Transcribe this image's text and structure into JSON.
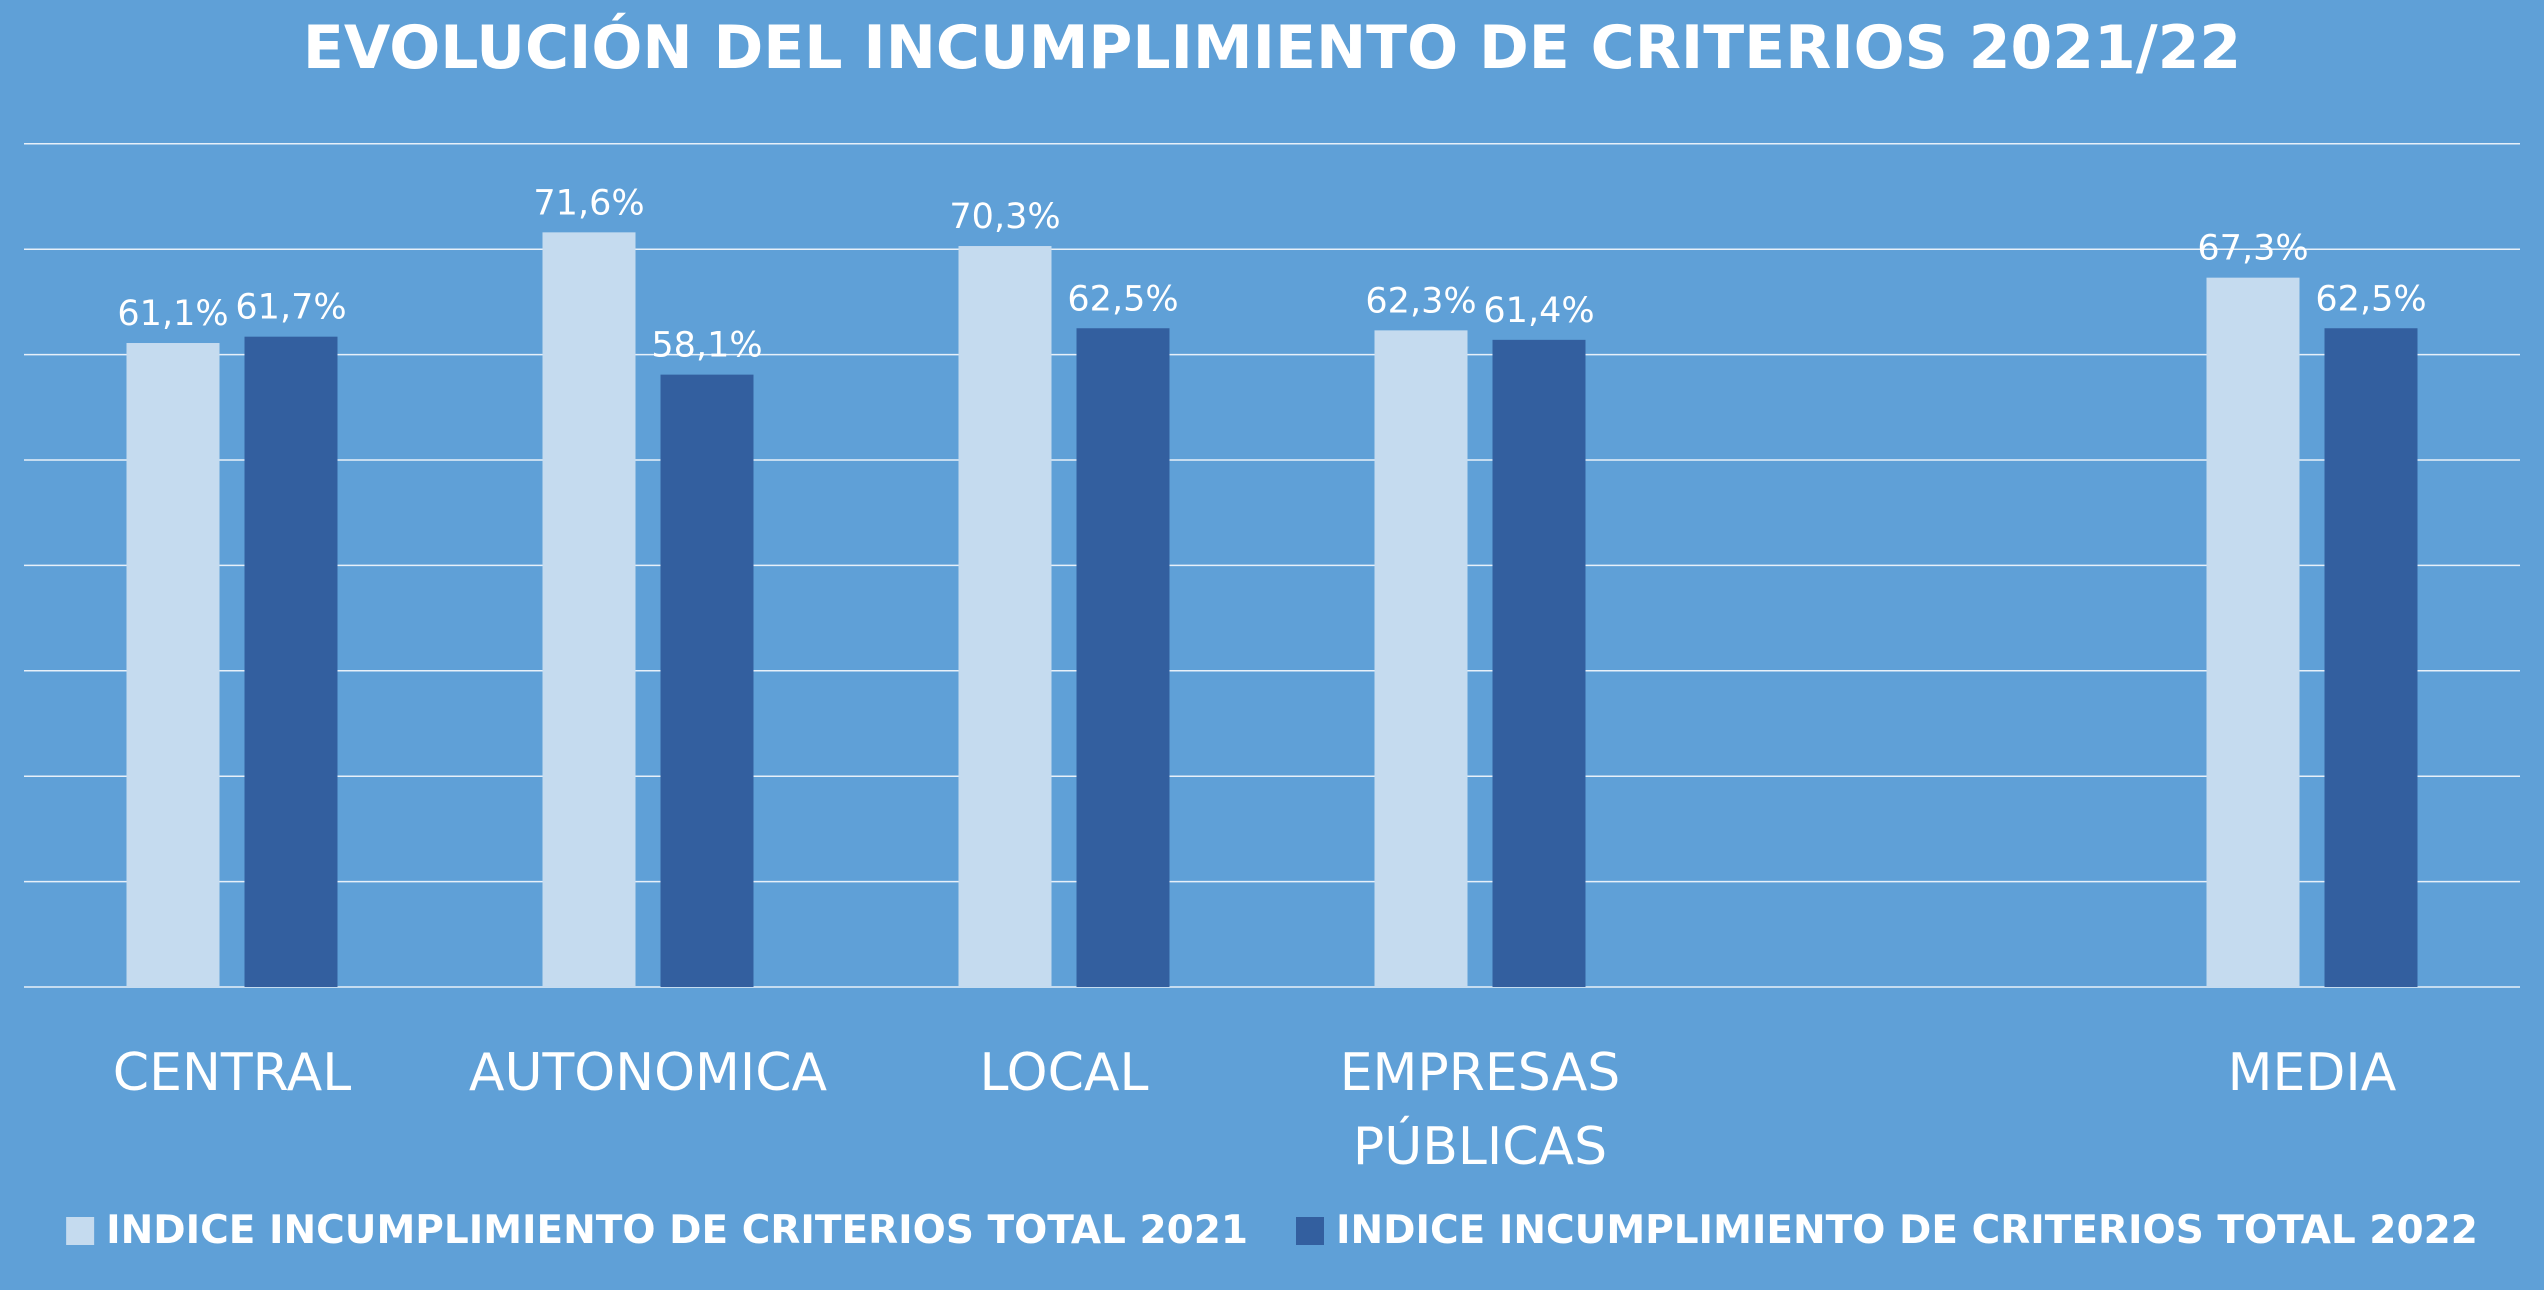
{
  "chart_data": {
    "type": "bar",
    "title": "EVOLUCIÓN DEL INCUMPLIMIENTO DE CRITERIOS  2021/22",
    "categories": [
      [
        "CENTRAL"
      ],
      [
        "AUTONOMICA"
      ],
      [
        "LOCAL"
      ],
      [
        "EMPRESAS",
        "PÚBLICAS"
      ],
      [],
      [
        "MEDIA"
      ]
    ],
    "series": [
      {
        "name": "INDICE INCUMPLIMIENTO DE CRITERIOS TOTAL 2021",
        "color": "#c5dbef",
        "values": [
          61.1,
          71.6,
          70.3,
          62.3,
          null,
          67.3
        ],
        "labels": [
          "61,1%",
          "71,6%",
          "70,3%",
          "62,3%",
          "",
          "67,3%"
        ]
      },
      {
        "name": "INDICE INCUMPLIMIENTO DE CRITERIOS TOTAL 2022",
        "color": "#335f9f",
        "values": [
          61.7,
          58.1,
          62.5,
          61.4,
          null,
          62.5
        ],
        "labels": [
          "61,7%",
          "58,1%",
          "62,5%",
          "61,4%",
          "",
          "62,5%"
        ]
      }
    ],
    "ylim": [
      0,
      80
    ],
    "grid": true,
    "legend": "bottom",
    "background_color": "#5fa0d7"
  }
}
